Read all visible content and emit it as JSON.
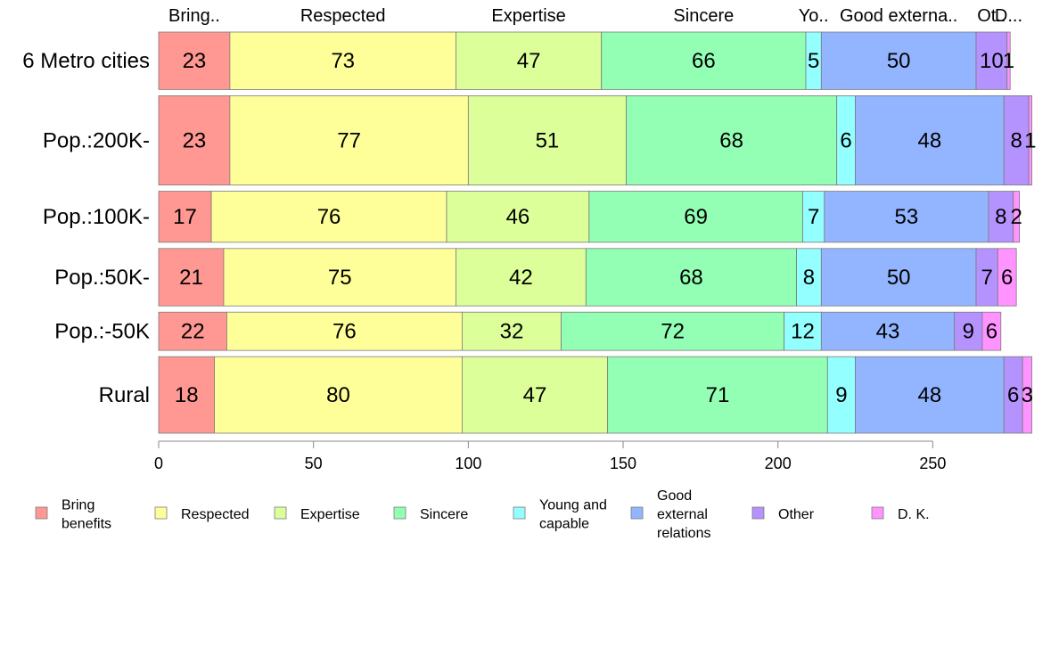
{
  "chart_data": {
    "type": "bar",
    "orientation": "horizontal",
    "stacked": true,
    "categories": [
      "6 Metro cities",
      "Pop.:200K-",
      "Pop.:100K-",
      "Pop.:50K-",
      "Pop.:-50K",
      "Rural"
    ],
    "series": [
      {
        "name": "Bring\nbenefits",
        "short": "Bring..",
        "color": "#ff9893",
        "values": [
          23,
          23,
          17,
          21,
          22,
          18
        ]
      },
      {
        "name": "Respected",
        "short": "Respected",
        "color": "#ffff99",
        "values": [
          73,
          77,
          76,
          75,
          76,
          80
        ]
      },
      {
        "name": "Expertise",
        "short": "Expertise",
        "color": "#dcff99",
        "values": [
          47,
          51,
          46,
          42,
          32,
          47
        ]
      },
      {
        "name": "Sincere",
        "short": "Sincere",
        "color": "#93ffb5",
        "values": [
          66,
          68,
          69,
          68,
          72,
          71
        ]
      },
      {
        "name": "Young and\ncapable",
        "short": "Yo..",
        "color": "#93ffff",
        "values": [
          5,
          6,
          7,
          8,
          12,
          9
        ]
      },
      {
        "name": "Good\nexternal\nrelations",
        "short": "Good externa..",
        "color": "#93b5ff",
        "values": [
          50,
          48,
          53,
          50,
          43,
          48
        ]
      },
      {
        "name": "Other",
        "short": "Ot..",
        "color": "#b593ff",
        "values": [
          10,
          8,
          8,
          7,
          9,
          6
        ]
      },
      {
        "name": "D. K.",
        "short": "D...",
        "color": "#ff93ff",
        "values": [
          1,
          1,
          2,
          6,
          6,
          3
        ]
      }
    ],
    "bar_weights": [
      9,
      14,
      8,
      9,
      6,
      12
    ],
    "xlim": [
      0,
      283
    ],
    "xticks": [
      0,
      50,
      100,
      150,
      200,
      250
    ],
    "grid": false,
    "legend_position": "bottom"
  }
}
